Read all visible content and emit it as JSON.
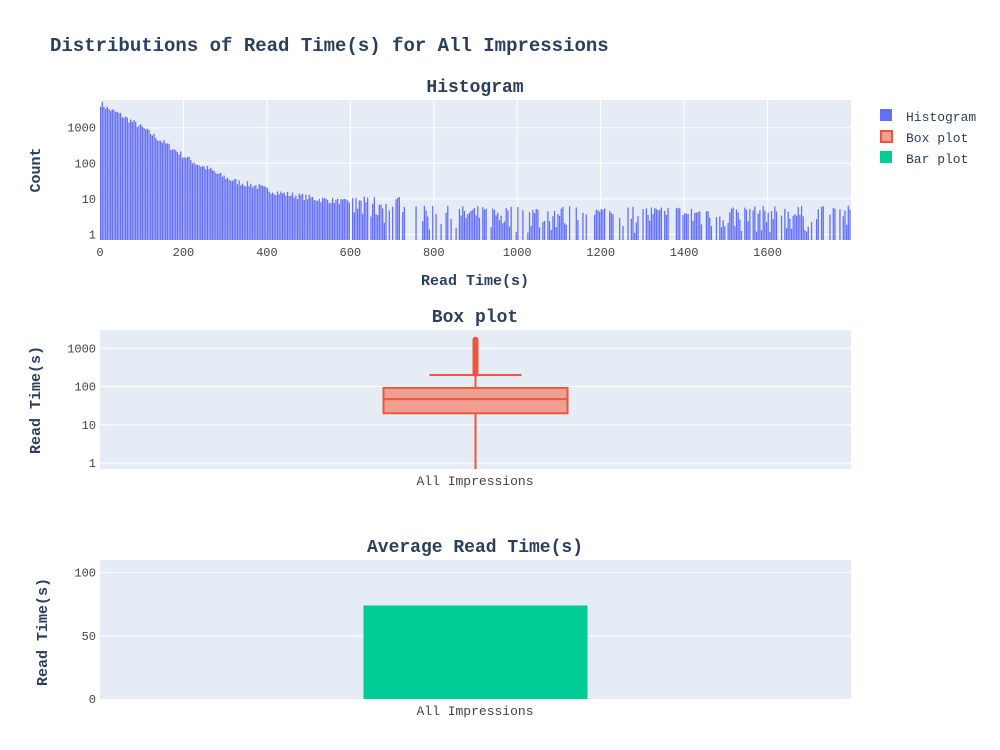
{
  "figure_title": "Distributions of Read Time(s) for All Impressions",
  "legend": {
    "items": [
      {
        "label": "Histogram",
        "color": "#636efa",
        "swatch": "fill"
      },
      {
        "label": "Box plot",
        "color": "#ef553b",
        "swatch": "box"
      },
      {
        "label": "Bar plot",
        "color": "#00cc96",
        "swatch": "fill"
      }
    ]
  },
  "colors": {
    "plot_bg": "#e5ecf6",
    "grid": "#ffffff",
    "text": "#2a3f5f",
    "tick": "#444444",
    "histogram": "#636efa",
    "box_line": "#ef553b",
    "box_fill": "#f0a093",
    "bar": "#00cc96"
  },
  "chart_data": [
    {
      "type": "bar",
      "subtype": "histogram",
      "title": "Histogram",
      "xlabel": "Read Time(s)",
      "ylabel": "Count",
      "yscale": "log",
      "xlim": [
        0,
        1800
      ],
      "ylim": [
        0.7,
        6000
      ],
      "xticks": [
        "0",
        "200",
        "400",
        "600",
        "800",
        "1000",
        "1200",
        "1400",
        "1600"
      ],
      "xtick_values": [
        0,
        200,
        400,
        600,
        800,
        1000,
        1200,
        1400,
        1600
      ],
      "yticks": [
        "1",
        "10",
        "100",
        "1000"
      ],
      "ytick_values": [
        1,
        10,
        100,
        1000
      ],
      "bin_width": 4,
      "decay_bins": {
        "bin_start": [
          0,
          20,
          40,
          60,
          80,
          100,
          120,
          140,
          160,
          180,
          200,
          220,
          240,
          260,
          280,
          300,
          320,
          340,
          360,
          380,
          400,
          440,
          480,
          520,
          560,
          600
        ],
        "counts": [
          4800,
          3300,
          2600,
          1900,
          1400,
          1000,
          700,
          470,
          330,
          230,
          160,
          115,
          85,
          70,
          50,
          40,
          32,
          28,
          25,
          22,
          18,
          14,
          12,
          10,
          9,
          8
        ]
      },
      "tail_level": 3,
      "grid": true
    },
    {
      "type": "box",
      "title": "Box plot",
      "ylabel": "Read Time(s)",
      "yscale": "log",
      "ylim": [
        0.7,
        3000
      ],
      "yticks": [
        "1",
        "10",
        "100",
        "1000"
      ],
      "ytick_values": [
        1,
        10,
        100,
        1000
      ],
      "categories": [
        "All Impressions"
      ],
      "stats": {
        "min": 0.5,
        "q1": 20,
        "median": 47,
        "q3": 92,
        "upper_fence": 200,
        "outlier_min": 180,
        "outlier_max": 2000
      },
      "grid": true
    },
    {
      "type": "bar",
      "title": "Average Read Time(s)",
      "ylabel": "Read Time(s)",
      "ylim": [
        0,
        110
      ],
      "yticks": [
        "0",
        "50",
        "100"
      ],
      "ytick_values": [
        0,
        50,
        100
      ],
      "categories": [
        "All Impressions"
      ],
      "values": [
        74
      ],
      "grid": true
    }
  ]
}
